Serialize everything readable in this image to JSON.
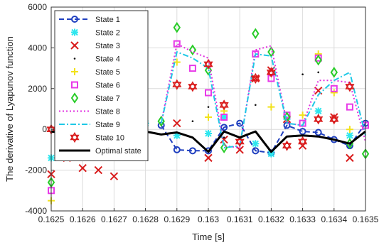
{
  "chart_data": {
    "type": "line",
    "xlabel": "Time [s]",
    "ylabel": "The derivative of Lyapunov function",
    "xlim": [
      0.1625,
      0.1635
    ],
    "ylim": [
      -4000,
      6000
    ],
    "grid": true,
    "legend_position": "top-left",
    "x_ticks": [
      0.1625,
      0.1626,
      0.1627,
      0.1628,
      0.1629,
      0.163,
      0.1631,
      0.1632,
      0.1633,
      0.1634,
      0.1635
    ],
    "x_tick_labels": [
      "0.1625",
      "0.1626",
      "0.1627",
      "0.1628",
      "0.1629",
      "0.163",
      "0.1631",
      "0.1632",
      "0.1633",
      "0.1634",
      "0.1635"
    ],
    "y_ticks": [
      -4000,
      -2000,
      0,
      2000,
      4000,
      6000
    ],
    "y_tick_labels": [
      "-4000",
      "-2000",
      "0",
      "2000",
      "4000",
      "6000"
    ],
    "series": [
      {
        "name": "State 1",
        "color": "#1f3fbf",
        "line": "dashed",
        "marker": "circle",
        "x": [
          0.16285,
          0.1629,
          0.16295,
          0.163,
          0.16305,
          0.1631,
          0.16315,
          0.1632,
          0.16325,
          0.1633,
          0.16335,
          0.1634,
          0.16345,
          0.1635
        ],
        "y": [
          200,
          -1000,
          -1050,
          -1050,
          100,
          300,
          -1050,
          -1150,
          200,
          -100,
          -150,
          -500,
          -800,
          300
        ]
      },
      {
        "name": "State 2",
        "color": "#2ee6ee",
        "line": "none",
        "marker": "asterisk",
        "x": [
          0.1625,
          0.16255,
          0.1628,
          0.1629,
          0.163,
          0.16305,
          0.16315,
          0.1632,
          0.16325,
          0.16335,
          0.16345
        ],
        "y": [
          -1400,
          -1300,
          300,
          -300,
          -200,
          600,
          -700,
          -1200,
          500,
          900,
          -300
        ]
      },
      {
        "name": "State 3",
        "color": "#d91c1c",
        "line": "none",
        "marker": "x",
        "x": [
          0.1625,
          0.16255,
          0.1626,
          0.16265,
          0.1627,
          0.1629,
          0.163,
          0.16305,
          0.1631,
          0.16315,
          0.1632,
          0.16325,
          0.1633,
          0.16335,
          0.1634,
          0.16345
        ],
        "y": [
          -2200,
          -1400,
          -1900,
          -2000,
          -2300,
          300,
          -1400,
          -500,
          -1000,
          2500,
          2900,
          500,
          -800,
          1900,
          600,
          -1400
        ]
      },
      {
        "name": "State 4",
        "color": "#111111",
        "line": "none",
        "marker": "dot",
        "x": [
          0.1628,
          0.16295,
          0.163,
          0.16305,
          0.16315,
          0.1632,
          0.1633,
          0.16335
        ],
        "y": [
          200,
          400,
          1100,
          -400,
          1200,
          1100,
          2700,
          2800
        ]
      },
      {
        "name": "State 5",
        "color": "#f2e21b",
        "line": "none",
        "marker": "plus",
        "x": [
          0.1625,
          0.1629,
          0.163,
          0.16305,
          0.1632,
          0.1633,
          0.16335,
          0.1634,
          0.16345
        ],
        "y": [
          -3500,
          3300,
          600,
          900,
          1100,
          700,
          3700,
          1800,
          0
        ]
      },
      {
        "name": "State 6",
        "color": "#e83ae8",
        "line": "none",
        "marker": "square",
        "x": [
          0.1625,
          0.1629,
          0.16295,
          0.163,
          0.16305,
          0.16315,
          0.1632,
          0.16325,
          0.1633,
          0.16335,
          0.1634,
          0.16345,
          0.1635
        ],
        "y": [
          -3000,
          4200,
          3000,
          1800,
          600,
          3700,
          2500,
          700,
          300,
          3500,
          2000,
          1100,
          200
        ]
      },
      {
        "name": "State 7",
        "color": "#27cc27",
        "line": "none",
        "marker": "diamond",
        "x": [
          0.1625,
          0.16285,
          0.1629,
          0.16295,
          0.163,
          0.16305,
          0.16315,
          0.1632,
          0.16325,
          0.16335,
          0.1634,
          0.16345,
          0.1635
        ],
        "y": [
          -2600,
          400,
          5000,
          3900,
          2900,
          -900,
          4700,
          3800,
          600,
          3400,
          2800,
          -700,
          -1200
        ]
      },
      {
        "name": "State 8",
        "color": "#e030e0",
        "line": "dotted",
        "marker": "none",
        "x": [
          0.16285,
          0.1629,
          0.16295,
          0.163,
          0.16305,
          0.1631,
          0.16315,
          0.1632,
          0.16325,
          0.1633,
          0.16335,
          0.1634,
          0.16345,
          0.1635
        ],
        "y": [
          300,
          4200,
          3800,
          3500,
          -800,
          -900,
          3900,
          4100,
          300,
          200,
          2400,
          2400,
          2300,
          -600
        ]
      },
      {
        "name": "State 9",
        "color": "#1ec8e6",
        "line": "dashdot",
        "marker": "none",
        "x": [
          0.16285,
          0.1629,
          0.16295,
          0.163,
          0.16305,
          0.1631,
          0.16315,
          0.1632,
          0.16325,
          0.1633,
          0.16335,
          0.1634,
          0.16345,
          0.1635
        ],
        "y": [
          300,
          3800,
          3500,
          3000,
          -900,
          -800,
          3700,
          3600,
          300,
          200,
          1700,
          2400,
          2800,
          -300
        ]
      },
      {
        "name": "State 10",
        "color": "#d91c1c",
        "line": "none",
        "marker": "hexagram",
        "x": [
          0.1625,
          0.16255,
          0.1629,
          0.16295,
          0.163,
          0.16305,
          0.1631,
          0.16315,
          0.1632,
          0.16325,
          0.1633,
          0.16335,
          0.1634,
          0.16345
        ],
        "y": [
          0,
          -300,
          2200,
          2100,
          3200,
          1200,
          -600,
          2500,
          2800,
          -800,
          -600,
          500,
          500,
          2100
        ]
      },
      {
        "name": "Optimal state",
        "color": "#000000",
        "line": "solid",
        "marker": "none",
        "x": [
          0.1625,
          0.16255,
          0.1626,
          0.16265,
          0.1627,
          0.16275,
          0.1628,
          0.16285,
          0.1629,
          0.16295,
          0.163,
          0.16305,
          0.1631,
          0.16315,
          0.1632,
          0.16325,
          0.1633,
          0.16335,
          0.1634,
          0.16345,
          0.1635
        ],
        "y": [
          -100,
          -200,
          -300,
          -250,
          -200,
          -100,
          -100,
          -250,
          -150,
          -400,
          -1100,
          -100,
          -400,
          -100,
          -1100,
          -350,
          -300,
          -350,
          -500,
          -700,
          -100
        ]
      }
    ]
  }
}
